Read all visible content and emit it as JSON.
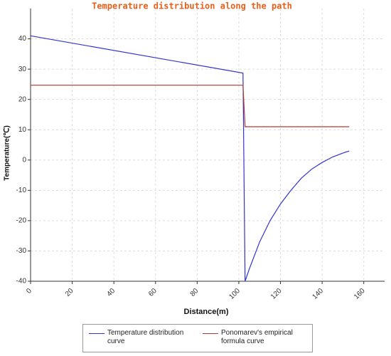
{
  "chart_data": {
    "type": "line",
    "title": "Temperature distribution along the path",
    "x_label": "Distance(m)",
    "y_label": "Temperature(℃)",
    "xlim": [
      0,
      170
    ],
    "xticks": [
      0,
      20,
      40,
      60,
      80,
      100,
      120,
      140,
      160
    ],
    "ylim": [
      -40,
      50
    ],
    "yticks": [
      -40,
      -30,
      -20,
      -10,
      0,
      10,
      20,
      30,
      40
    ],
    "grid": true,
    "series": [
      {
        "name": "Temperature distribution curve",
        "color": "#3333cc",
        "x": [
          0,
          102,
          103,
          105,
          110,
          115,
          120,
          125,
          130,
          135,
          140,
          145,
          150,
          153
        ],
        "values": [
          41,
          28.7,
          -40,
          -36,
          -27,
          -20,
          -14.5,
          -10,
          -6,
          -3,
          -0.8,
          1,
          2.3,
          3
        ]
      },
      {
        "name": "Ponomarev's empirical formula curve",
        "color": "#b03a2e",
        "x": [
          0,
          102,
          103,
          153
        ],
        "values": [
          24.7,
          24.7,
          11,
          11
        ]
      }
    ]
  }
}
